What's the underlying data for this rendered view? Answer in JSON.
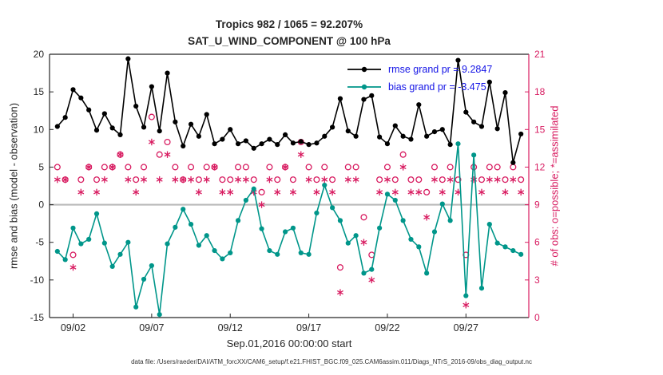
{
  "title": {
    "line1": "Tropics 982 / 1065 = 92.207%",
    "line2": "SAT_U_WIND_COMPONENT @ 100 hPa"
  },
  "footer": {
    "caption": "data file: /Users/raeder/DAI/ATM_forcXX/CAM6_setup/f.e21.FHIST_BGC.f09_025.CAM6assim.011/Diags_NTrS_2016-09/obs_diag_output.nc"
  },
  "colors": {
    "rmse": "#000000",
    "bias": "#00968a",
    "obs": "#d81b60",
    "legend_text": "#1414e6",
    "zero_line": "#b9b9b9",
    "axis": "#262626"
  },
  "chart_data": {
    "type": "line",
    "title": "Tropics 982 / 1065 = 92.207% — SAT_U_WIND_COMPONENT @ 100 hPa",
    "xlabel": "Sep.01,2016 00:00:00 start",
    "ylabel_left": "rmse and bias (model - observation)",
    "ylabel_right": "# of obs: o=possible; *=assimilated",
    "xlim": [
      0.5,
      31
    ],
    "ylim_left": [
      -15,
      20
    ],
    "ylim_right": [
      0,
      21
    ],
    "grid": false,
    "legend_position": "top-right-inside",
    "xticks": {
      "values": [
        2,
        7,
        12,
        17,
        22,
        27
      ],
      "labels": [
        "09/02",
        "09/07",
        "09/12",
        "09/17",
        "09/22",
        "09/27"
      ]
    },
    "yticks_left": [
      20,
      15,
      10,
      5,
      0,
      -5,
      -10,
      -15
    ],
    "yticks_right": [
      21,
      18,
      15,
      12,
      9,
      6,
      3,
      0
    ],
    "zero_line_left": 0,
    "x": [
      1,
      1.5,
      2,
      2.5,
      3,
      3.5,
      4,
      4.5,
      5,
      5.5,
      6,
      6.5,
      7,
      7.5,
      8,
      8.5,
      9,
      9.5,
      10,
      10.5,
      11,
      11.5,
      12,
      12.5,
      13,
      13.5,
      14,
      14.5,
      15,
      15.5,
      16,
      16.5,
      17,
      17.5,
      18,
      18.5,
      19,
      19.5,
      20,
      20.5,
      21,
      21.5,
      22,
      22.5,
      23,
      23.5,
      24,
      24.5,
      25,
      25.5,
      26,
      26.5,
      27,
      27.5,
      28,
      28.5,
      29,
      29.5,
      30,
      30.5
    ],
    "series": [
      {
        "name": "possible",
        "axis": "right",
        "marker": "open-circle",
        "line": false,
        "color": "#d81b60",
        "values": [
          12,
          11,
          5,
          11,
          12,
          11,
          12,
          12,
          13,
          12,
          11,
          12,
          16,
          13,
          14,
          12,
          11,
          12,
          11,
          12,
          12,
          11,
          11,
          12,
          12,
          11,
          10,
          12,
          11,
          12,
          11,
          14,
          12,
          11,
          12,
          11,
          4,
          12,
          12,
          8,
          5,
          11,
          12,
          11,
          13,
          11,
          11,
          10,
          12,
          11,
          12,
          11,
          5,
          12,
          11,
          12,
          12,
          11,
          12,
          11
        ]
      },
      {
        "name": "assimilated",
        "axis": "right",
        "marker": "asterisk",
        "line": false,
        "color": "#d81b60",
        "values": [
          11,
          11,
          4,
          10,
          12,
          10,
          11,
          12,
          13,
          11,
          10,
          11,
          14,
          11,
          13,
          11,
          11,
          11,
          10,
          11,
          12,
          10,
          10,
          11,
          11,
          10,
          9,
          11,
          10,
          12,
          10,
          13,
          11,
          10,
          11,
          10,
          2,
          11,
          11,
          6,
          3,
          10,
          11,
          10,
          12,
          10,
          10,
          8,
          11,
          10,
          11,
          10,
          1,
          11,
          10,
          11,
          11,
          10,
          11,
          10
        ]
      },
      {
        "name": "bias",
        "axis": "left",
        "marker": "filled-circle",
        "line": true,
        "color": "#00968a",
        "values": [
          -6.2,
          -7.3,
          -3.1,
          -5.2,
          -4.6,
          -1.2,
          -5.1,
          -8.2,
          -6.6,
          -5.0,
          -13.6,
          -9.9,
          -8.1,
          -14.6,
          -5.2,
          -3.0,
          -0.6,
          -2.6,
          -5.4,
          -4.1,
          -6.1,
          -7.2,
          -6.4,
          -2.1,
          0.6,
          2.1,
          -3.2,
          -6.1,
          -6.6,
          -3.6,
          -3.1,
          -6.4,
          -6.6,
          -1.1,
          2.6,
          -0.4,
          -2.1,
          -5.1,
          -4.1,
          -9.1,
          -8.6,
          -3.1,
          1.4,
          0.6,
          -2.1,
          -4.6,
          -5.6,
          -9.1,
          -3.6,
          0.1,
          -2.1,
          8.1,
          -12.1,
          6.6,
          -11.1,
          -2.6,
          -5.1,
          -5.6,
          -6.1,
          -6.6
        ]
      },
      {
        "name": "rmse",
        "axis": "left",
        "marker": "filled-circle",
        "line": true,
        "color": "#000000",
        "values": [
          10.4,
          11.6,
          15.3,
          14.2,
          12.6,
          9.9,
          12.1,
          10.2,
          9.3,
          19.4,
          13.1,
          10.3,
          15.7,
          9.8,
          17.5,
          11.0,
          7.8,
          10.7,
          9.1,
          12.0,
          8.1,
          8.7,
          10.0,
          8.1,
          8.5,
          7.5,
          8.1,
          8.7,
          8.0,
          9.3,
          8.2,
          8.4,
          8.0,
          8.2,
          9.1,
          10.3,
          14.1,
          9.8,
          9.1,
          14.0,
          14.5,
          9.0,
          8.1,
          10.5,
          9.1,
          8.7,
          13.3,
          9.1,
          9.7,
          10.0,
          8.0,
          19.2,
          12.3,
          11.0,
          10.4,
          16.3,
          10.1,
          14.9,
          5.6,
          9.4
        ]
      }
    ],
    "legend": [
      {
        "label": "rmse grand pr = 9.2847",
        "color": "#000000"
      },
      {
        "label": "bias grand pr = -3.475",
        "color": "#00968a"
      }
    ]
  }
}
